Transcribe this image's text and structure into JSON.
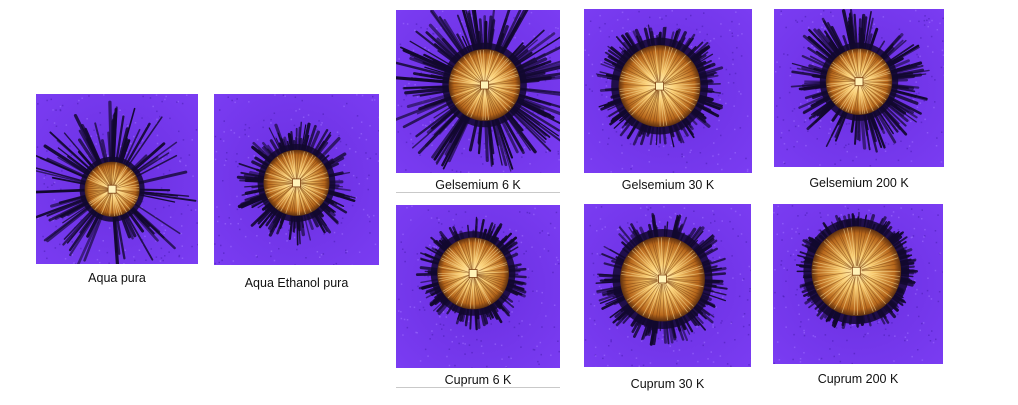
{
  "samples": [
    {
      "caption": "Aqua pura",
      "halo": "diffuse"
    },
    {
      "caption": "Aqua Ethanol pura",
      "halo": "compact"
    },
    {
      "caption": "Gelsemium 6 K",
      "halo": "spiky"
    },
    {
      "caption": "Gelsemium 30 K",
      "halo": "lobed"
    },
    {
      "caption": "Gelsemium 200 K",
      "halo": "spiky"
    },
    {
      "caption": "Cuprum 6 K",
      "halo": "compact"
    },
    {
      "caption": "Cuprum 30 K",
      "halo": "spiky"
    },
    {
      "caption": "Cuprum 200 K",
      "halo": "irregular"
    }
  ],
  "colors": {
    "background": "#7a3cf2",
    "dark_spikes": "#12082e",
    "core_outer": "#b8681c",
    "core_inner": "#f7c86a",
    "center": "#fff2b8"
  }
}
